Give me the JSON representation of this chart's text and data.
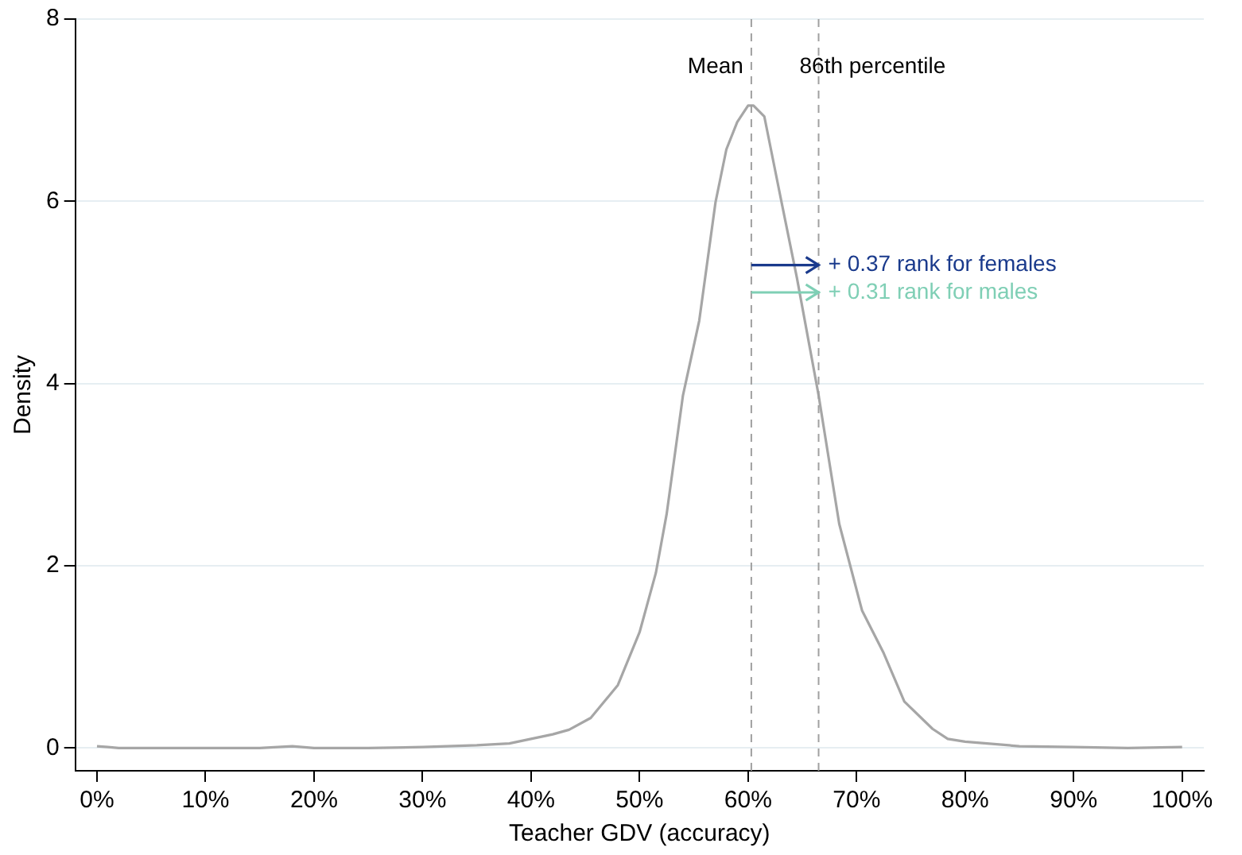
{
  "chart_data": {
    "type": "line",
    "xlabel": "Teacher GDV (accuracy)",
    "ylabel": "Density",
    "x": [
      0,
      1,
      2,
      5,
      10,
      15,
      18,
      20,
      25,
      30,
      35,
      38,
      40,
      42,
      43.5,
      45.5,
      48,
      50,
      51.5,
      52.5,
      54,
      55.5,
      57,
      58,
      59,
      60,
      60.5,
      61.5,
      63,
      64.5,
      66.5,
      68.4,
      70.5,
      72.5,
      74.4,
      77,
      78.4,
      80,
      85,
      90,
      95,
      100
    ],
    "series": [
      {
        "color": "#a6a6a6",
        "values": [
          0.02,
          0.01,
          0,
          0,
          0,
          0,
          0.02,
          0,
          0,
          0.01,
          0.03,
          0.05,
          0.1,
          0.15,
          0.2,
          0.33,
          0.69,
          1.27,
          1.92,
          2.57,
          3.87,
          4.69,
          5.99,
          6.57,
          6.87,
          7.05,
          7.05,
          6.93,
          6.04,
          5.16,
          3.87,
          2.46,
          1.51,
          1.04,
          0.51,
          0.21,
          0.1,
          0.07,
          0.02,
          0.01,
          0,
          0.01
        ]
      }
    ],
    "xlim": [
      -2,
      102
    ],
    "ylim": [
      -0.25,
      8
    ],
    "xticks": [
      {
        "value": 0,
        "label": "0%"
      },
      {
        "value": 10,
        "label": "10%"
      },
      {
        "value": 20,
        "label": "20%"
      },
      {
        "value": 30,
        "label": "30%"
      },
      {
        "value": 40,
        "label": "40%"
      },
      {
        "value": 50,
        "label": "50%"
      },
      {
        "value": 60,
        "label": "60%"
      },
      {
        "value": 70,
        "label": "70%"
      },
      {
        "value": 80,
        "label": "80%"
      },
      {
        "value": 90,
        "label": "90%"
      },
      {
        "value": 100,
        "label": "100%"
      }
    ],
    "yticks": [
      0,
      2,
      4,
      6,
      8
    ],
    "grid": "y",
    "legend": false,
    "marker": "none",
    "line_style": "solid",
    "ref_lines": [
      {
        "axis": "x",
        "value": 60.3,
        "label": "Mean",
        "color": "#a0a0a0",
        "line_style": "dashed"
      },
      {
        "axis": "x",
        "value": 66.5,
        "label": "86th percentile",
        "color": "#a0a0a0",
        "line_style": "dashed"
      }
    ],
    "annotations": [
      {
        "text": "+ 0.37 rank for females",
        "x": 66.5,
        "y": 5.3
      },
      {
        "text": "+ 0.31 rank for males",
        "x": 66.5,
        "y": 5.0
      }
    ]
  }
}
